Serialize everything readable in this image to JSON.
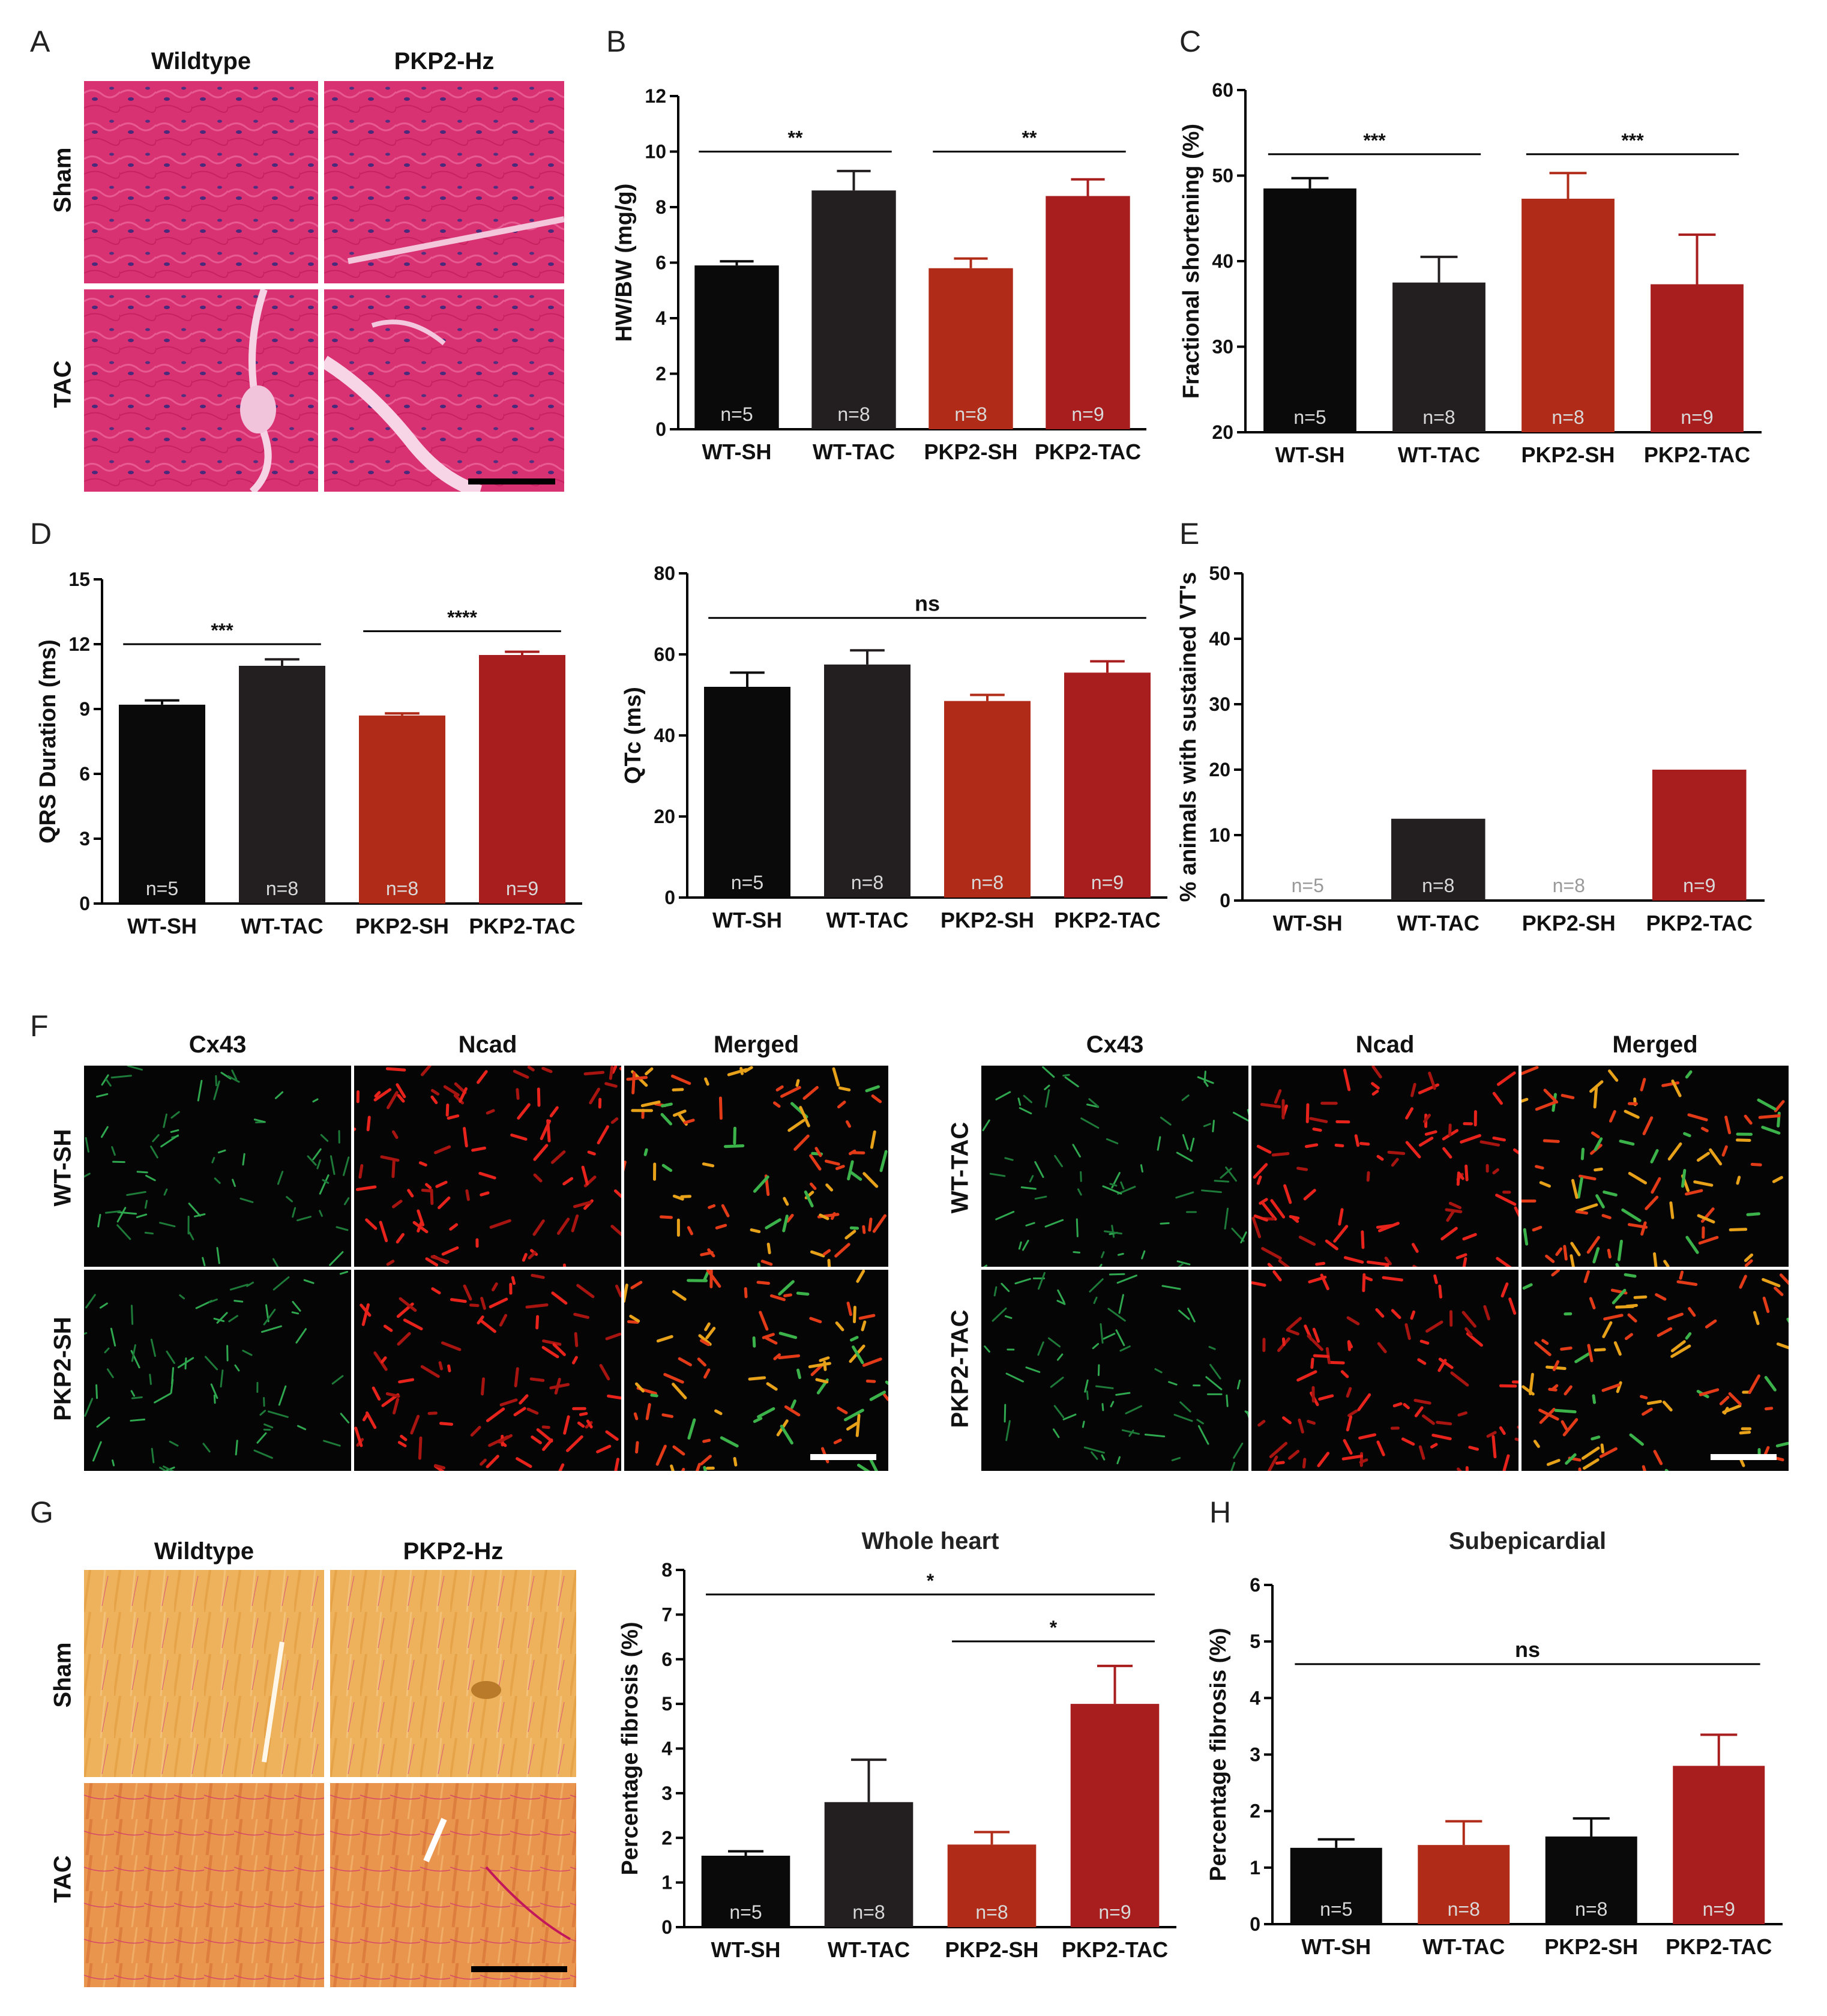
{
  "panel_letters": {
    "A": "A",
    "B": "B",
    "C": "C",
    "D": "D",
    "E": "E",
    "F": "F",
    "G": "G",
    "H": "H"
  },
  "panelA": {
    "col1": "Wildtype",
    "col2": "PKP2-Hz",
    "row1": "Sham",
    "row2": "TAC"
  },
  "panelF": {
    "c1": "Cx43",
    "c2": "Ncad",
    "c3": "Merged",
    "left_rows": [
      "WT-SH",
      "PKP2-SH"
    ],
    "right_rows": [
      "WT-TAC",
      "PKP2-TAC"
    ]
  },
  "panelG": {
    "col1": "Wildtype",
    "col2": "PKP2-Hz",
    "row1": "Sham",
    "row2": "TAC"
  },
  "colors": {
    "black": "#0a0a0a",
    "dark": "#231f20",
    "red": "#ad2c1a",
    "red2": "#a81d1d",
    "he": "#d6306e",
    "sirius": "#e6a24a"
  },
  "chart_data": [
    {
      "id": "B",
      "type": "bar",
      "title": "",
      "ylabel": "HW/BW (mg/g)",
      "ylim": [
        0,
        12
      ],
      "yticks": [
        0,
        2,
        4,
        6,
        8,
        10,
        12
      ],
      "categories": [
        "WT-SH",
        "WT-TAC",
        "PKP2-SH",
        "PKP2-TAC"
      ],
      "values": [
        5.9,
        8.6,
        5.8,
        8.4
      ],
      "errors": [
        0.15,
        0.7,
        0.35,
        0.6
      ],
      "colors": [
        "#0a0a0a",
        "#231f20",
        "#b02c18",
        "#a81d1d"
      ],
      "n_labels": [
        "n=5",
        "n=8",
        "n=8",
        "n=9"
      ],
      "brackets": [
        {
          "from": 0,
          "to": 1,
          "y": 10.0,
          "label": "**"
        },
        {
          "from": 2,
          "to": 3,
          "y": 10.0,
          "label": "**"
        }
      ]
    },
    {
      "id": "C",
      "type": "bar",
      "title": "",
      "ylabel": "Fractional shortening (%)",
      "ylim": [
        20,
        60
      ],
      "yticks": [
        20,
        30,
        40,
        50,
        60
      ],
      "categories": [
        "WT-SH",
        "WT-TAC",
        "PKP2-SH",
        "PKP2-TAC"
      ],
      "values": [
        48.5,
        37.5,
        47.3,
        37.3
      ],
      "errors": [
        1.2,
        3.0,
        3.0,
        5.8
      ],
      "colors": [
        "#0a0a0a",
        "#231f20",
        "#b02c18",
        "#a81d1d"
      ],
      "n_labels": [
        "n=5",
        "n=8",
        "n=8",
        "n=9"
      ],
      "brackets": [
        {
          "from": 0,
          "to": 1,
          "y": 52.5,
          "label": "***"
        },
        {
          "from": 2,
          "to": 3,
          "y": 52.5,
          "label": "***"
        }
      ]
    },
    {
      "id": "D1",
      "type": "bar",
      "title": "",
      "ylabel": "QRS Duration (ms)",
      "ylim": [
        0,
        15
      ],
      "yticks": [
        0,
        3,
        6,
        9,
        12,
        15
      ],
      "categories": [
        "WT-SH",
        "WT-TAC",
        "PKP2-SH",
        "PKP2-TAC"
      ],
      "values": [
        9.2,
        11.0,
        8.7,
        11.5
      ],
      "errors": [
        0.2,
        0.3,
        0.1,
        0.15
      ],
      "colors": [
        "#0a0a0a",
        "#231f20",
        "#b02c18",
        "#a81d1d"
      ],
      "n_labels": [
        "n=5",
        "n=8",
        "n=8",
        "n=9"
      ],
      "brackets": [
        {
          "from": 0,
          "to": 1,
          "y": 12.0,
          "label": "***"
        },
        {
          "from": 2,
          "to": 3,
          "y": 12.6,
          "label": "****"
        }
      ]
    },
    {
      "id": "D2",
      "type": "bar",
      "title": "",
      "ylabel": "QTc (ms)",
      "ylim": [
        0,
        80
      ],
      "yticks": [
        0,
        20,
        40,
        60,
        80
      ],
      "categories": [
        "WT-SH",
        "WT-TAC",
        "PKP2-SH",
        "PKP2-TAC"
      ],
      "values": [
        52,
        57.5,
        48.5,
        55.5
      ],
      "errors": [
        3.5,
        3.5,
        1.5,
        2.8
      ],
      "colors": [
        "#0a0a0a",
        "#231f20",
        "#b02c18",
        "#a81d1d"
      ],
      "n_labels": [
        "n=5",
        "n=8",
        "n=8",
        "n=9"
      ],
      "brackets": [
        {
          "from": 0,
          "to": 3,
          "y": 69,
          "label": "ns"
        }
      ]
    },
    {
      "id": "E",
      "type": "bar",
      "title": "",
      "ylabel": "% animals with sustained VT's",
      "ylim": [
        0,
        50
      ],
      "yticks": [
        0,
        10,
        20,
        30,
        40,
        50
      ],
      "categories": [
        "WT-SH",
        "WT-TAC",
        "PKP2-SH",
        "PKP2-TAC"
      ],
      "values": [
        0,
        12.5,
        0,
        20
      ],
      "errors": [
        0,
        0,
        0,
        0
      ],
      "colors": [
        "#0a0a0a",
        "#231f20",
        "#b02c18",
        "#a81d1d"
      ],
      "n_labels": [
        "n=5",
        "n=8",
        "n=8",
        "n=9"
      ],
      "brackets": []
    },
    {
      "id": "G",
      "type": "bar",
      "title": "Whole heart",
      "ylabel": "Percentage fibrosis (%)",
      "ylim": [
        0,
        8
      ],
      "yticks": [
        0,
        1,
        2,
        3,
        4,
        5,
        6,
        7,
        8
      ],
      "categories": [
        "WT-SH",
        "WT-TAC",
        "PKP2-SH",
        "PKP2-TAC"
      ],
      "values": [
        1.6,
        2.8,
        1.85,
        5.0
      ],
      "errors": [
        0.1,
        0.95,
        0.28,
        0.85
      ],
      "colors": [
        "#0a0a0a",
        "#231f20",
        "#b02c18",
        "#a81d1d"
      ],
      "n_labels": [
        "n=5",
        "n=8",
        "n=8",
        "n=9"
      ],
      "brackets": [
        {
          "from": 0,
          "to": 3,
          "y": 7.45,
          "label": "*"
        },
        {
          "from": 2,
          "to": 3,
          "y": 6.4,
          "label": "*"
        }
      ]
    },
    {
      "id": "H",
      "type": "bar",
      "title": "Subepicardial",
      "ylabel": "Percentage fibrosis (%)",
      "ylim": [
        0,
        6
      ],
      "yticks": [
        0,
        1,
        2,
        3,
        4,
        5,
        6
      ],
      "categories": [
        "WT-SH",
        "WT-TAC",
        "PKP2-SH",
        "PKP2-TAC"
      ],
      "values": [
        1.35,
        1.4,
        1.55,
        2.8
      ],
      "errors": [
        0.15,
        0.42,
        0.32,
        0.55
      ],
      "colors": [
        "#0a0a0a",
        "#b02c18",
        "#0a0a0a",
        "#a81d1d"
      ],
      "n_labels": [
        "n=5",
        "n=8",
        "n=8",
        "n=9"
      ],
      "brackets": [
        {
          "from": 0,
          "to": 3,
          "y": 4.6,
          "label": "ns"
        }
      ]
    }
  ]
}
